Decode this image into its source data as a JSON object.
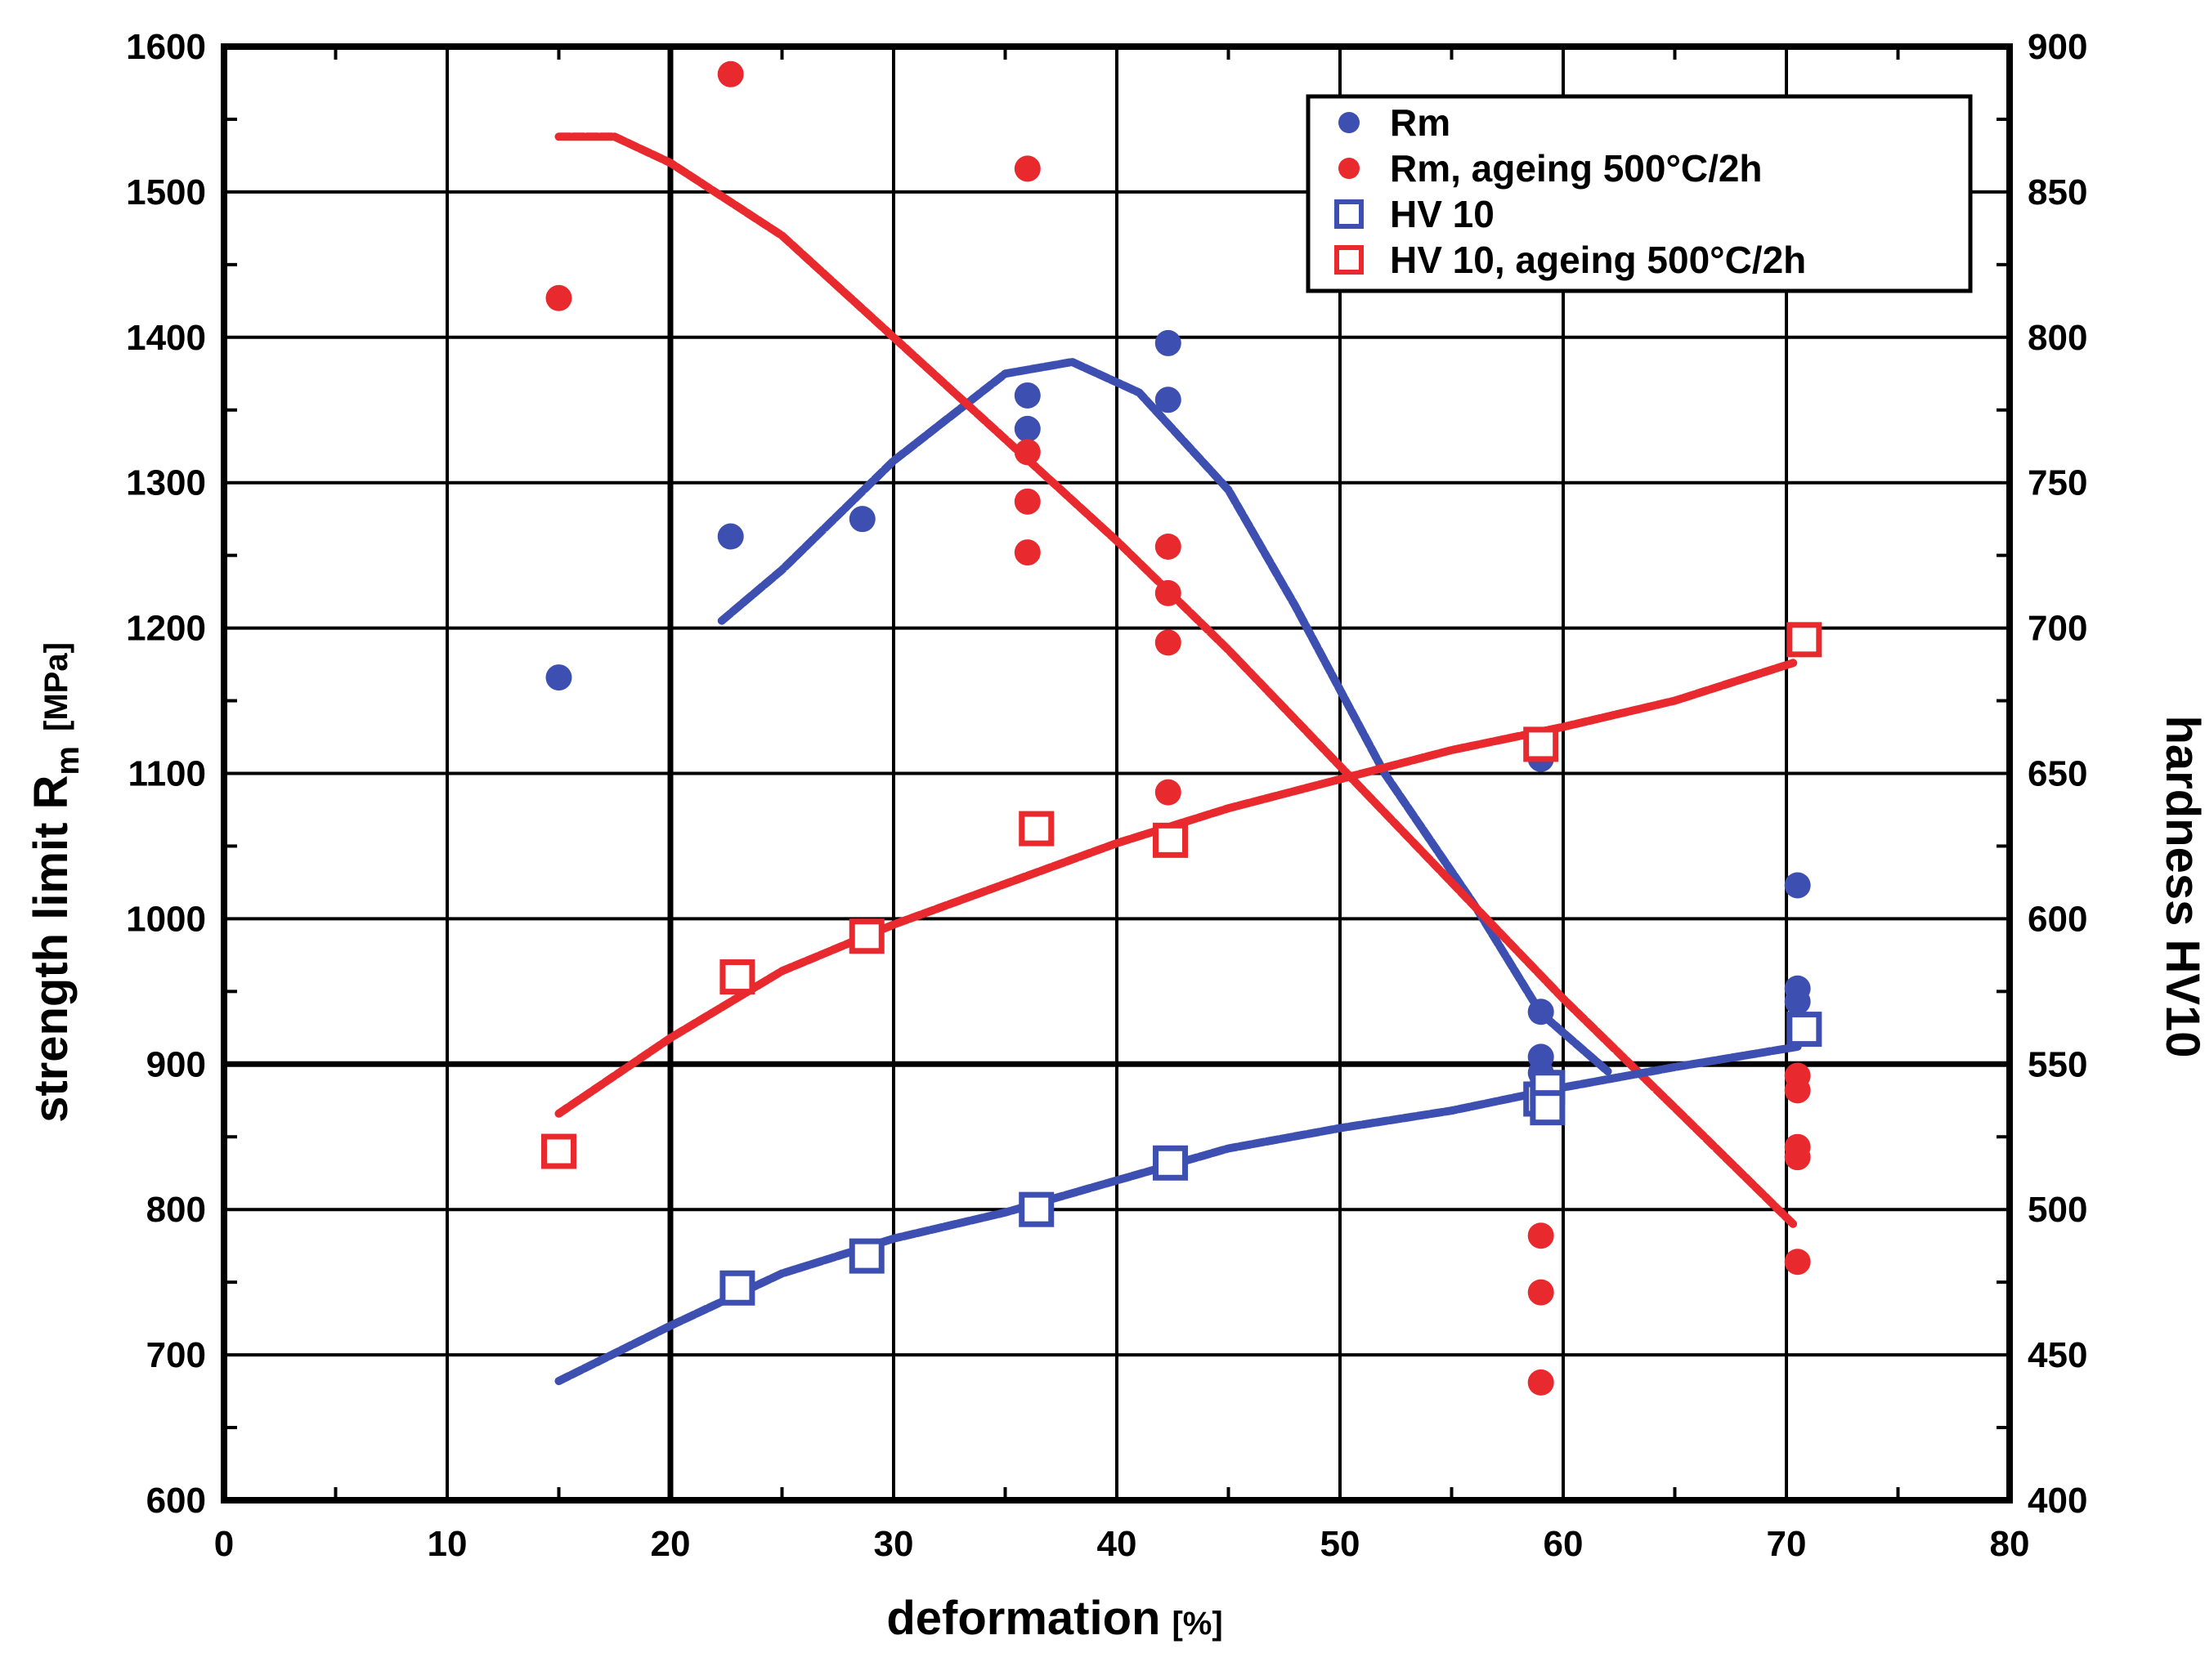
{
  "chart_data": {
    "type": "scatter",
    "title": "",
    "xlabel": "deformation",
    "xlabel_unit": "[%]",
    "ylabel_main": "strength limit R",
    "ylabel_sub": "m",
    "ylabel_unit": "[MPa]",
    "y2label": "hardness HV10",
    "xlim": [
      0,
      80
    ],
    "ylim": [
      600,
      1600
    ],
    "y2lim": [
      400,
      900
    ],
    "grid": true,
    "x_ticks": [
      "0",
      "10",
      "20",
      "30",
      "40",
      "50",
      "60",
      "70",
      "80"
    ],
    "y_ticks": [
      "600",
      "700",
      "800",
      "900",
      "1000",
      "1100",
      "1200",
      "1300",
      "1400",
      "1500",
      "1600"
    ],
    "y2_ticks": [
      "400",
      "450",
      "500",
      "550",
      "600",
      "650",
      "700",
      "750",
      "800",
      "850",
      "900"
    ],
    "legend_position": "top-right",
    "colors": {
      "blue": "#3d4fb0",
      "red": "#e8292d"
    },
    "series": [
      {
        "name": "Rm",
        "marker": "circle",
        "color": "#3d4fb0",
        "axis": "left",
        "points": [
          [
            15,
            1166
          ],
          [
            22.7,
            1263
          ],
          [
            28.6,
            1275
          ],
          [
            36,
            1360
          ],
          [
            36,
            1337
          ],
          [
            42.3,
            1396
          ],
          [
            42.3,
            1357
          ],
          [
            59,
            1110
          ],
          [
            59,
            936
          ],
          [
            59,
            905
          ],
          [
            59,
            894
          ],
          [
            70.5,
            1023
          ],
          [
            70.5,
            952
          ],
          [
            70.5,
            943
          ]
        ]
      },
      {
        "name": "Rm, ageing 500°C/2h",
        "marker": "circle",
        "color": "#e8292d",
        "axis": "left",
        "points": [
          [
            15,
            1427
          ],
          [
            22.7,
            1581
          ],
          [
            36,
            1516
          ],
          [
            36,
            1321
          ],
          [
            36,
            1287
          ],
          [
            36,
            1252
          ],
          [
            42.3,
            1256
          ],
          [
            42.3,
            1224
          ],
          [
            42.3,
            1190
          ],
          [
            42.3,
            1087
          ],
          [
            59,
            782
          ],
          [
            59,
            743
          ],
          [
            59,
            681
          ],
          [
            70.5,
            892
          ],
          [
            70.5,
            882
          ],
          [
            70.5,
            843
          ],
          [
            70.5,
            836
          ],
          [
            70.5,
            764
          ]
        ]
      },
      {
        "name": "HV 10",
        "marker": "square",
        "color": "#3d4fb0",
        "axis": "right",
        "points": [
          [
            23,
            473
          ],
          [
            28.8,
            484
          ],
          [
            36.4,
            500
          ],
          [
            42.4,
            516
          ],
          [
            59,
            538
          ],
          [
            59.3,
            542
          ],
          [
            59.3,
            535
          ],
          [
            70.8,
            562
          ]
        ]
      },
      {
        "name": "HV 10, ageing 500°C/2h",
        "marker": "square",
        "color": "#e8292d",
        "axis": "right",
        "points": [
          [
            15,
            520
          ],
          [
            23,
            580
          ],
          [
            28.8,
            594
          ],
          [
            36.4,
            631
          ],
          [
            42.4,
            627
          ],
          [
            59,
            660
          ],
          [
            70.8,
            696
          ]
        ]
      }
    ],
    "trend_lines": [
      {
        "name": "Rm trend",
        "color": "#3d4fb0",
        "axis": "left",
        "points": [
          [
            22.3,
            1205
          ],
          [
            25,
            1240
          ],
          [
            30,
            1315
          ],
          [
            35,
            1375
          ],
          [
            38,
            1383
          ],
          [
            41,
            1362
          ],
          [
            45,
            1295
          ],
          [
            48,
            1215
          ],
          [
            52,
            1100
          ],
          [
            56,
            1010
          ],
          [
            59,
            935
          ],
          [
            62,
            895
          ]
        ]
      },
      {
        "name": "Rm, ageing 500°C/2h trend",
        "color": "#e8292d",
        "axis": "left",
        "points": [
          [
            15,
            1538
          ],
          [
            17.5,
            1538
          ],
          [
            20,
            1520
          ],
          [
            25,
            1470
          ],
          [
            30,
            1400
          ],
          [
            35,
            1330
          ],
          [
            40,
            1260
          ],
          [
            45,
            1185
          ],
          [
            50,
            1105
          ],
          [
            55,
            1025
          ],
          [
            60,
            945
          ],
          [
            65,
            870
          ],
          [
            70.3,
            790
          ]
        ]
      },
      {
        "name": "HV 10 trend",
        "color": "#3d4fb0",
        "axis": "right",
        "points": [
          [
            15,
            441
          ],
          [
            20,
            460
          ],
          [
            25,
            478
          ],
          [
            30,
            490
          ],
          [
            35,
            499
          ],
          [
            40,
            510
          ],
          [
            45,
            521
          ],
          [
            50,
            528
          ],
          [
            55,
            534
          ],
          [
            60,
            542
          ],
          [
            65,
            549
          ],
          [
            70.5,
            556
          ]
        ]
      },
      {
        "name": "HV 10, ageing 500°C/2h trend",
        "color": "#e8292d",
        "axis": "right",
        "points": [
          [
            15,
            533
          ],
          [
            20,
            559
          ],
          [
            25,
            582
          ],
          [
            30,
            598
          ],
          [
            35,
            612
          ],
          [
            40,
            626
          ],
          [
            45,
            638
          ],
          [
            50,
            648
          ],
          [
            55,
            658
          ],
          [
            60,
            666
          ],
          [
            65,
            675
          ],
          [
            70.3,
            688
          ]
        ]
      }
    ]
  }
}
